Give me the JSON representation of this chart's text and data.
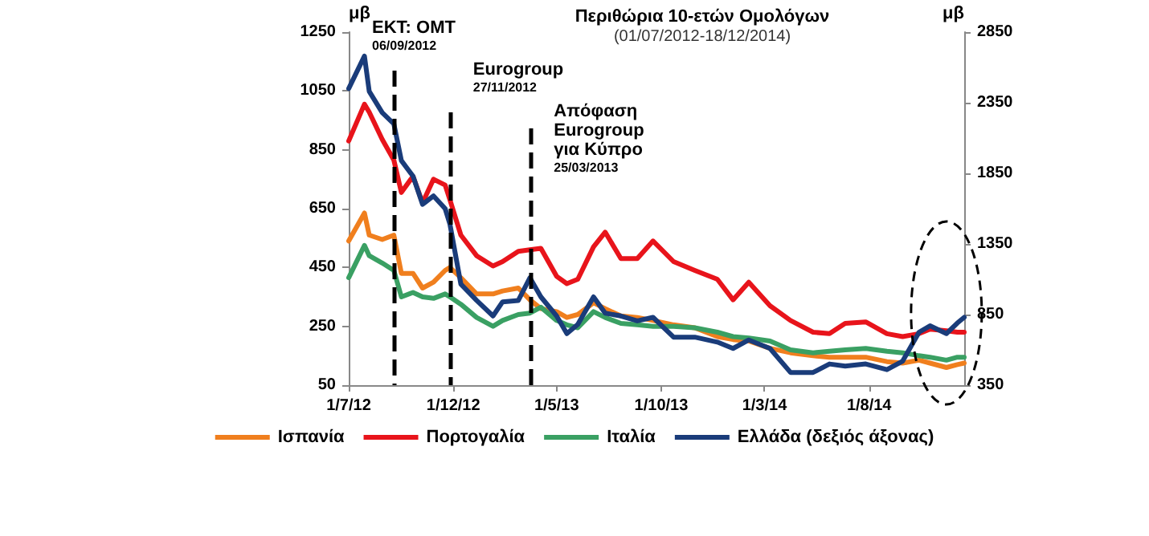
{
  "chart_data": {
    "type": "line",
    "title": "Περιθώρια 10-ετών Ομολόγων",
    "subtitle": "(01/07/2012-18/12/2014)",
    "ylabel": "μβ",
    "y2label": "μβ",
    "x": [
      "2012-07-01",
      "2012-07-24",
      "2012-07-31",
      "2012-08-19",
      "2012-09-05",
      "2012-09-16",
      "2012-10-03",
      "2012-10-17",
      "2012-11-02",
      "2012-11-19",
      "2012-11-26",
      "2012-12-12",
      "2013-01-04",
      "2013-01-28",
      "2013-02-11",
      "2013-03-06",
      "2013-03-23",
      "2013-04-08",
      "2013-05-01",
      "2013-05-16",
      "2013-06-01",
      "2013-06-24",
      "2013-07-11",
      "2013-08-03",
      "2013-08-27",
      "2013-09-19",
      "2013-10-19",
      "2013-11-19",
      "2013-12-22",
      "2014-01-14",
      "2014-02-06",
      "2014-03-09",
      "2014-04-08",
      "2014-05-11",
      "2014-06-04",
      "2014-06-27",
      "2014-07-27",
      "2014-08-27",
      "2014-09-19",
      "2014-10-13",
      "2014-10-29",
      "2014-11-22",
      "2014-12-08",
      "2014-12-18"
    ],
    "series": [
      {
        "name": "Ισπανία",
        "color": "#f07f1e",
        "values": [
          540,
          635,
          560,
          545,
          560,
          430,
          430,
          380,
          400,
          440,
          450,
          415,
          360,
          360,
          370,
          380,
          340,
          310,
          300,
          280,
          290,
          330,
          310,
          285,
          280,
          270,
          255,
          245,
          215,
          205,
          200,
          175,
          160,
          150,
          145,
          145,
          145,
          130,
          125,
          135,
          125,
          110,
          120,
          125
        ]
      },
      {
        "name": "Πορτογαλία",
        "color": "#e8141b",
        "values": [
          880,
          1005,
          978,
          885,
          815,
          705,
          760,
          670,
          750,
          730,
          680,
          560,
          490,
          455,
          470,
          505,
          510,
          515,
          420,
          395,
          410,
          520,
          570,
          480,
          480,
          540,
          470,
          440,
          410,
          340,
          400,
          320,
          270,
          230,
          225,
          260,
          265,
          225,
          215,
          225,
          240,
          235,
          230,
          230
        ]
      },
      {
        "name": "Ιταλία",
        "color": "#3aa063",
        "values": [
          415,
          525,
          490,
          465,
          440,
          350,
          365,
          350,
          345,
          360,
          350,
          325,
          280,
          250,
          270,
          290,
          295,
          315,
          270,
          255,
          245,
          300,
          280,
          260,
          255,
          250,
          250,
          245,
          230,
          215,
          210,
          200,
          170,
          160,
          165,
          170,
          175,
          165,
          160,
          150,
          145,
          135,
          145,
          145
        ]
      },
      {
        "name": "Ελλάδα (δεξιός άξονας)",
        "color": "#1a3c7a",
        "axis": "y2",
        "values": [
          2450,
          2680,
          2430,
          2280,
          2200,
          1940,
          1830,
          1630,
          1690,
          1600,
          1490,
          1065,
          950,
          840,
          940,
          950,
          1110,
          975,
          840,
          715,
          780,
          975,
          860,
          840,
          805,
          830,
          690,
          690,
          655,
          610,
          670,
          610,
          440,
          440,
          500,
          485,
          500,
          460,
          520,
          725,
          770,
          715,
          790,
          830
        ]
      }
    ],
    "xlim": [
      "2012-07-01",
      "2014-12-18"
    ],
    "xticks": [
      {
        "value": "2012-07-01",
        "label": "1/7/12"
      },
      {
        "value": "2012-12-01",
        "label": "1/12/12"
      },
      {
        "value": "2013-05-01",
        "label": "1/5/13"
      },
      {
        "value": "2013-10-01",
        "label": "1/10/13"
      },
      {
        "value": "2014-03-01",
        "label": "1/3/14"
      },
      {
        "value": "2014-08-01",
        "label": "1/8/14"
      }
    ],
    "ylim": [
      50,
      1250
    ],
    "yticks": [
      50,
      250,
      450,
      650,
      850,
      1050,
      1250
    ],
    "y2lim": [
      350,
      2850
    ],
    "y2ticks": [
      350,
      850,
      1350,
      1850,
      2350,
      2850
    ],
    "ref_lines": [
      {
        "axis": "x",
        "value": "2012-09-06",
        "label": "ΕΚΤ: ΟΜΤ\n06/09/2012",
        "line_style": "dashed",
        "color": "#000000"
      },
      {
        "axis": "x",
        "value": "2012-11-27",
        "label": "Eurogroup\n27/11/2012",
        "line_style": "dashed",
        "color": "#000000"
      },
      {
        "axis": "x",
        "value": "2013-03-25",
        "label": "Απόφαση\nEurogroup\nγια Κύπρο\n25/03/2013",
        "line_style": "dashed",
        "color": "#000000"
      }
    ],
    "grid": false,
    "legend": "bottom",
    "marker": "none",
    "line_style": "solid"
  }
}
